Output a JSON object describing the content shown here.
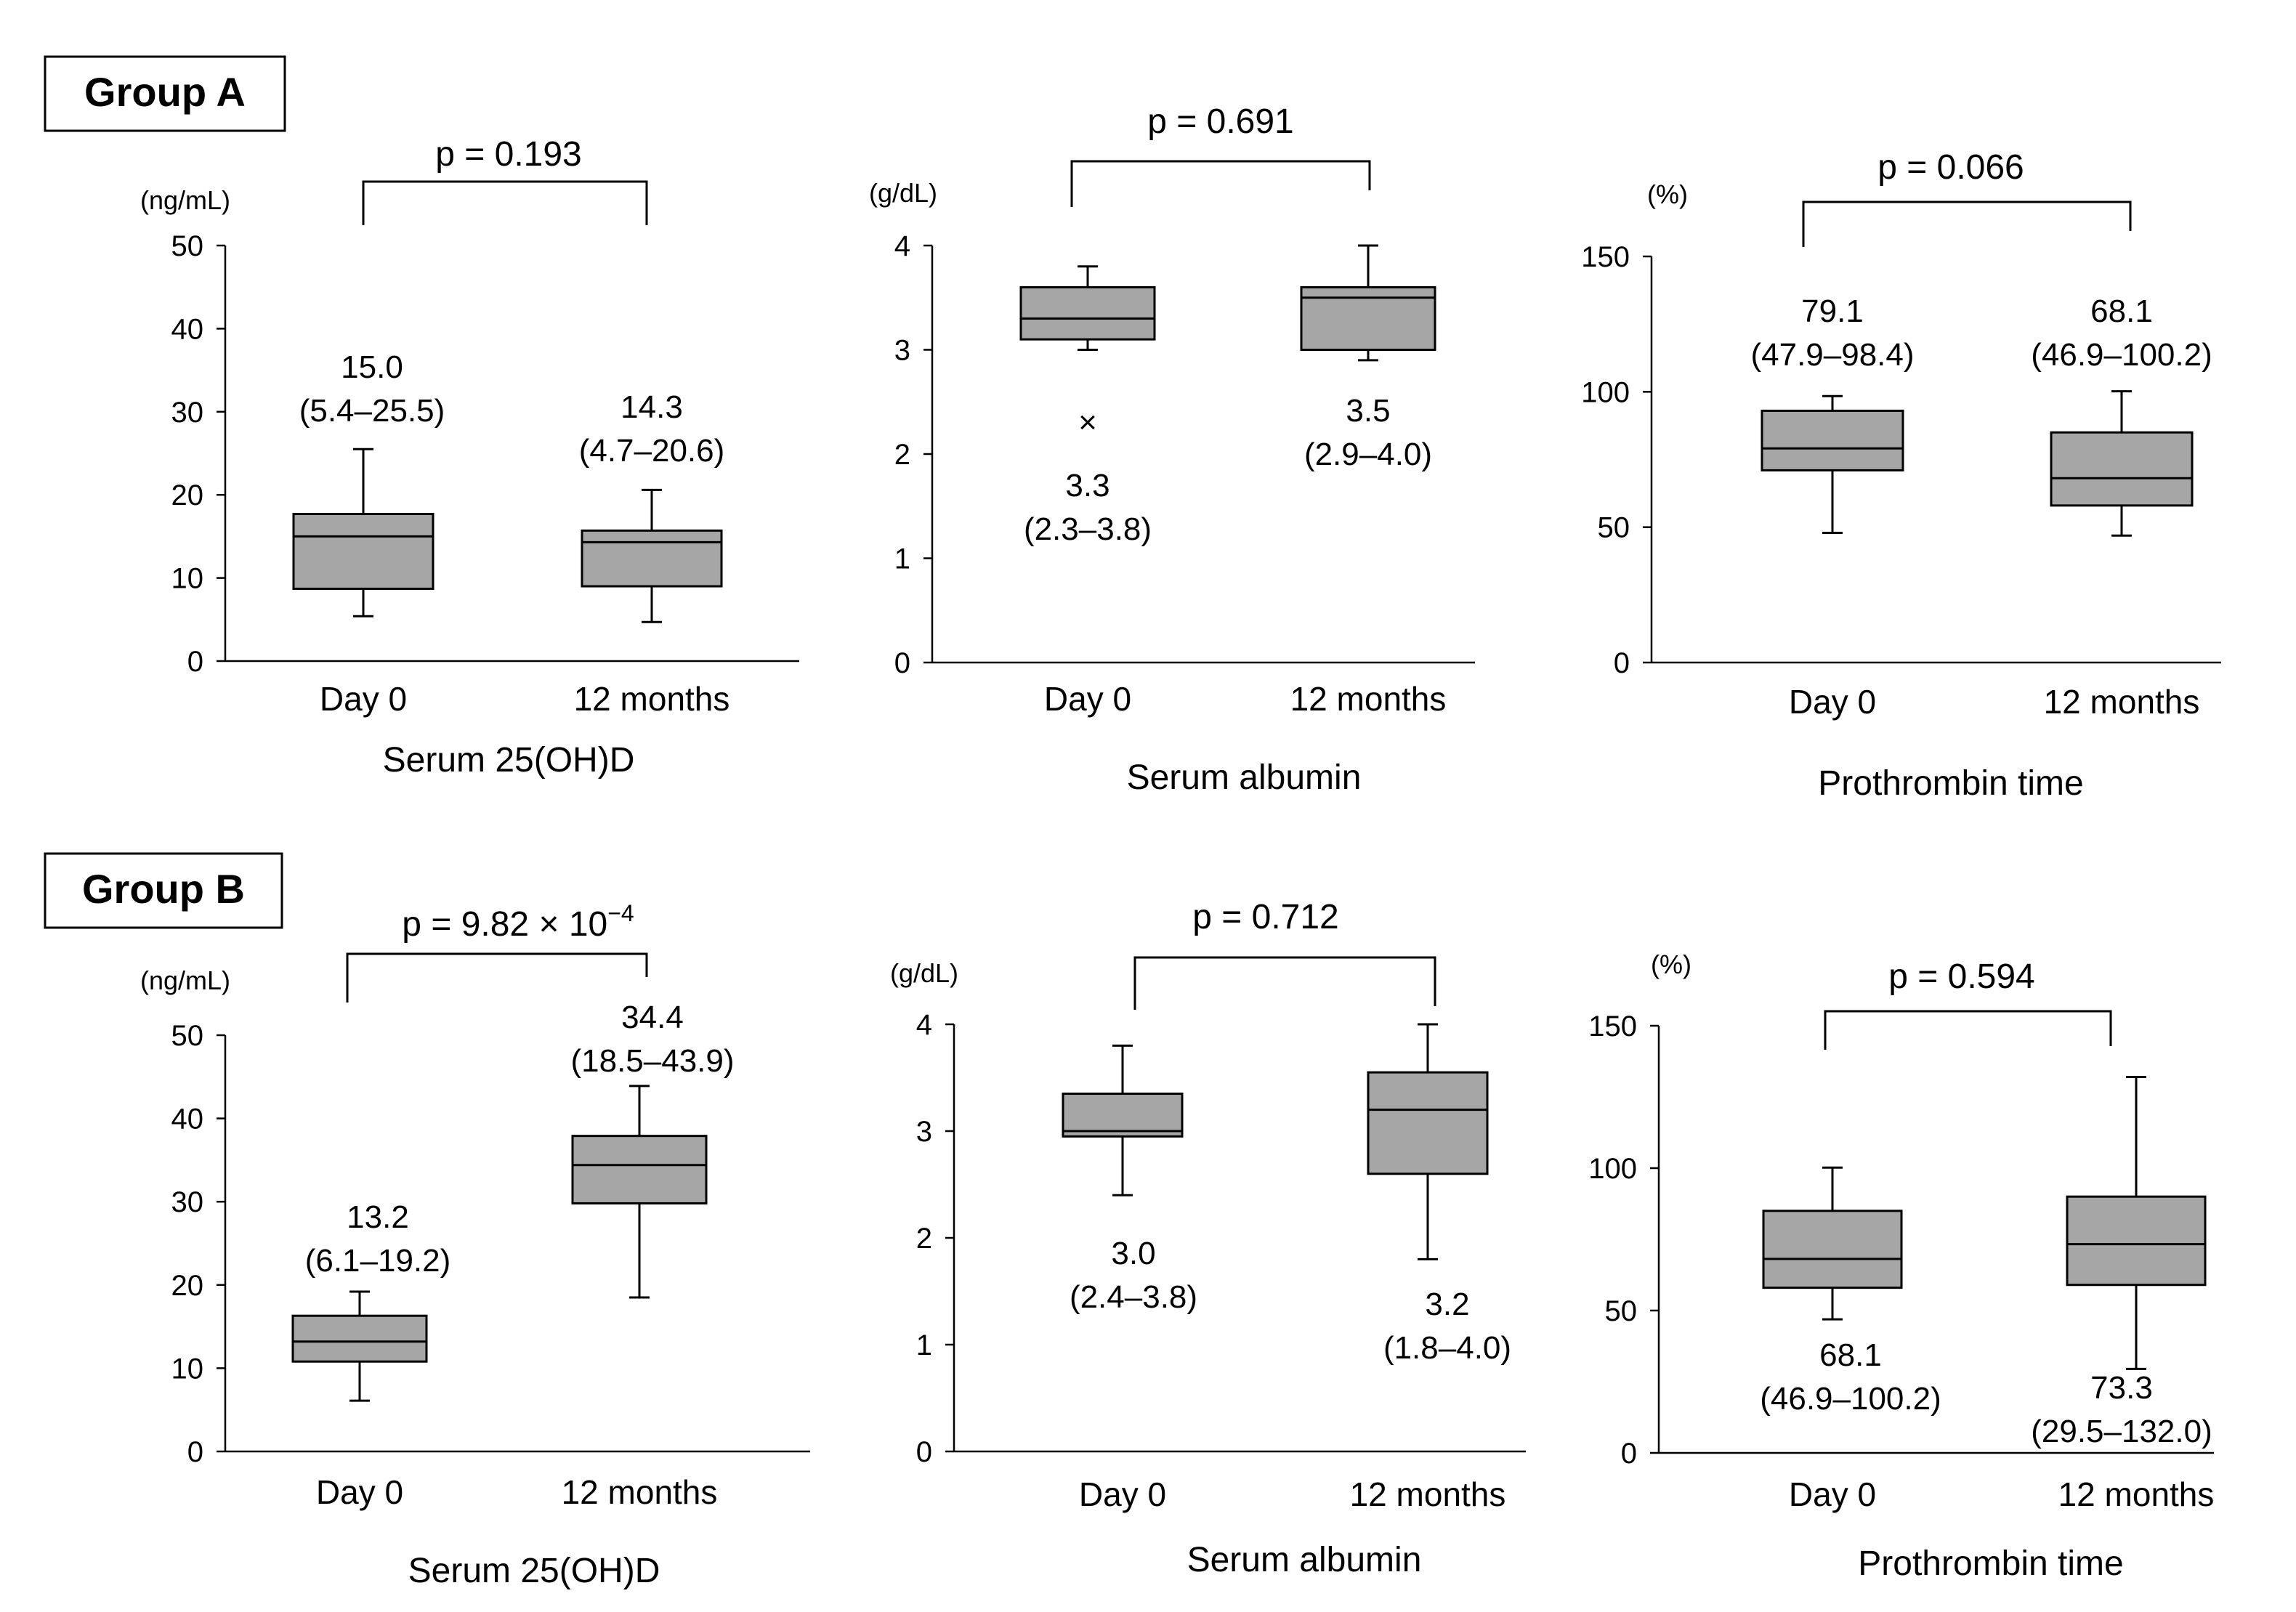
{
  "groups": [
    {
      "label": "Group A"
    },
    {
      "label": "Group B"
    }
  ],
  "chart_data": [
    {
      "type": "box",
      "group": "Group A",
      "title": "Serum 25(OH)D",
      "unit": "(ng/mL)",
      "categories": [
        "Day 0",
        "12 months"
      ],
      "ylim": [
        0,
        50
      ],
      "yticks": [
        "0",
        "10",
        "20",
        "30",
        "40",
        "50"
      ],
      "p_value": "p = 0.193",
      "boxes": [
        {
          "min": 5.4,
          "q1": 8.7,
          "median": 15.0,
          "q3": 17.7,
          "max": 25.5,
          "annotation_value": "15.0",
          "annotation_range": "(5.4–25.5)"
        },
        {
          "min": 4.7,
          "q1": 9.0,
          "median": 14.3,
          "q3": 15.7,
          "max": 20.6,
          "annotation_value": "14.3",
          "annotation_range": "(4.7–20.6)"
        }
      ]
    },
    {
      "type": "box",
      "group": "Group A",
      "title": "Serum albumin",
      "unit": "(g/dL)",
      "categories": [
        "Day 0",
        "12 months"
      ],
      "ylim": [
        0,
        4
      ],
      "yticks": [
        "0",
        "1",
        "2",
        "3",
        "4"
      ],
      "p_value": "p = 0.691",
      "boxes": [
        {
          "min": 3.0,
          "q1": 3.1,
          "median": 3.3,
          "q3": 3.6,
          "max": 3.8,
          "outlier": 2.3,
          "outlier_symbol": "×",
          "annotation_value": "3.3",
          "annotation_range": "(2.3–3.8)"
        },
        {
          "min": 2.9,
          "q1": 3.0,
          "median": 3.5,
          "q3": 3.6,
          "max": 4.0,
          "annotation_value": "3.5",
          "annotation_range": "(2.9–4.0)"
        }
      ]
    },
    {
      "type": "box",
      "group": "Group A",
      "title": "Prothrombin time",
      "unit": "(%)",
      "categories": [
        "Day 0",
        "12 months"
      ],
      "ylim": [
        0,
        150
      ],
      "yticks": [
        "0",
        "50",
        "100",
        "150"
      ],
      "p_value": "p = 0.066",
      "boxes": [
        {
          "min": 47.9,
          "q1": 71,
          "median": 79.1,
          "q3": 93,
          "max": 98.4,
          "annotation_value": "79.1",
          "annotation_range": "(47.9–98.4)"
        },
        {
          "min": 46.9,
          "q1": 58,
          "median": 68.1,
          "q3": 85,
          "max": 100.2,
          "annotation_value": "68.1",
          "annotation_range": "(46.9–100.2)"
        }
      ]
    },
    {
      "type": "box",
      "group": "Group B",
      "title": "Serum 25(OH)D",
      "unit": "(ng/mL)",
      "categories": [
        "Day 0",
        "12 months"
      ],
      "ylim": [
        0,
        50
      ],
      "yticks": [
        "0",
        "10",
        "20",
        "30",
        "40",
        "50"
      ],
      "p_value": "p = 9.82 × 10",
      "p_value_exponent": "−4",
      "boxes": [
        {
          "min": 6.1,
          "q1": 10.8,
          "median": 13.2,
          "q3": 16.3,
          "max": 19.2,
          "annotation_value": "13.2",
          "annotation_range": "(6.1–19.2)"
        },
        {
          "min": 18.5,
          "q1": 29.8,
          "median": 34.4,
          "q3": 37.9,
          "max": 43.9,
          "annotation_value": "34.4",
          "annotation_range": "(18.5–43.9)"
        }
      ]
    },
    {
      "type": "box",
      "group": "Group B",
      "title": "Serum albumin",
      "unit": "(g/dL)",
      "categories": [
        "Day 0",
        "12 months"
      ],
      "ylim": [
        0,
        4
      ],
      "yticks": [
        "0",
        "1",
        "2",
        "3",
        "4"
      ],
      "p_value": "p = 0.712",
      "boxes": [
        {
          "min": 2.4,
          "q1": 2.95,
          "median": 3.0,
          "q3": 3.35,
          "max": 3.8,
          "annotation_value": "3.0",
          "annotation_range": "(2.4–3.8)"
        },
        {
          "min": 1.8,
          "q1": 2.6,
          "median": 3.2,
          "q3": 3.55,
          "max": 4.0,
          "annotation_value": "3.2",
          "annotation_range": "(1.8–4.0)"
        }
      ]
    },
    {
      "type": "box",
      "group": "Group B",
      "title": "Prothrombin time",
      "unit": "(%)",
      "categories": [
        "Day 0",
        "12 months"
      ],
      "ylim": [
        0,
        150
      ],
      "yticks": [
        "0",
        "50",
        "100",
        "150"
      ],
      "p_value": "p = 0.594",
      "boxes": [
        {
          "min": 46.9,
          "q1": 58,
          "median": 68.1,
          "q3": 85,
          "max": 100.2,
          "annotation_value": "68.1",
          "annotation_range": "(46.9–100.2)"
        },
        {
          "min": 29.5,
          "q1": 59,
          "median": 73.3,
          "q3": 90,
          "max": 132.0,
          "annotation_value": "73.3",
          "annotation_range": "(29.5–132.0)"
        }
      ]
    }
  ]
}
